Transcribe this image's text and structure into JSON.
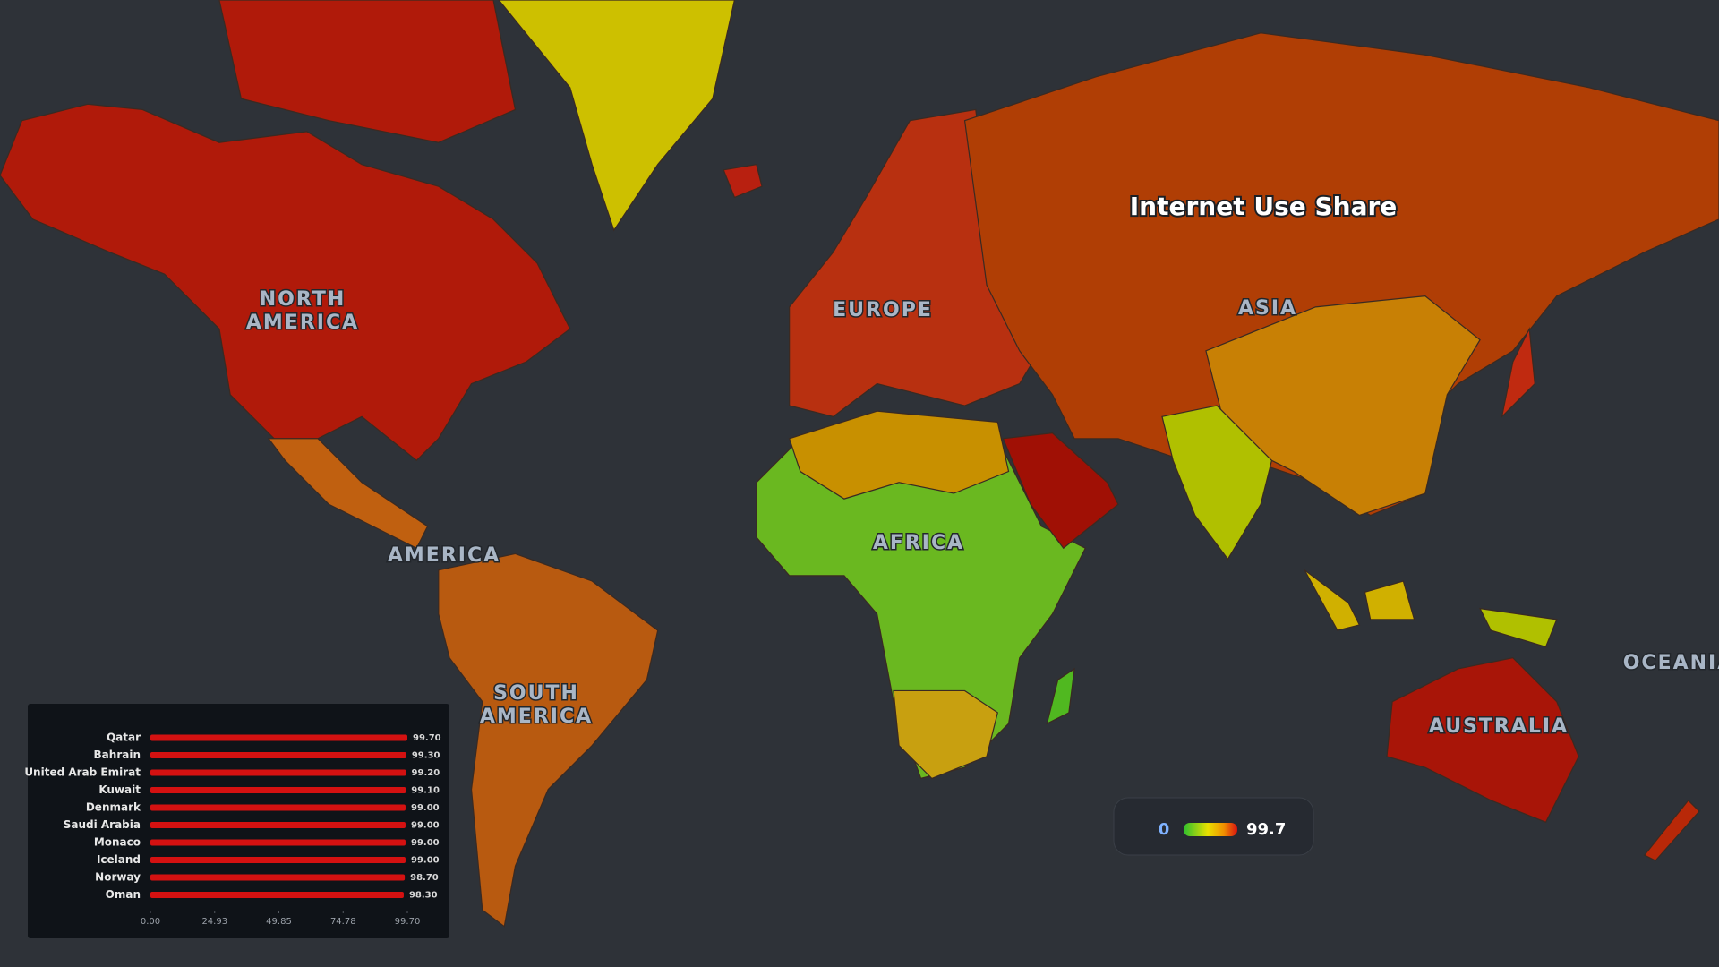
{
  "title": "Internet Use Share",
  "map_labels": [
    [
      "NORTH",
      "AMERICA"
    ],
    [
      "EUROPE"
    ],
    [
      "ASIA"
    ],
    [
      "AMERICA"
    ],
    [
      "AFRICA"
    ],
    [
      "SOUTH",
      "AMERICA"
    ],
    [
      "AUSTRALIA"
    ],
    [
      "OCEANIA"
    ]
  ],
  "legend": {
    "min": 0,
    "max": 99.7
  },
  "chart_data": {
    "type": "bar",
    "orientation": "horizontal",
    "categories": [
      "Qatar",
      "Bahrain",
      "United Arab Emirat",
      "Kuwait",
      "Denmark",
      "Saudi Arabia",
      "Monaco",
      "Iceland",
      "Norway",
      "Oman"
    ],
    "values": [
      99.7,
      99.3,
      99.2,
      99.1,
      99.0,
      99.0,
      99.0,
      99.0,
      98.7,
      98.3
    ],
    "value_labels": [
      "99.70",
      "99.30",
      "99.20",
      "99.10",
      "99.00",
      "99.00",
      "99.00",
      "99.00",
      "98.70",
      "98.30"
    ],
    "color": "#d41111",
    "xlim": [
      0,
      99.7
    ],
    "xticks": [
      {
        "value": 0,
        "label": "0.00"
      },
      24.93,
      49.85,
      74.78,
      {
        "value": 99.7,
        "label": "99.70"
      }
    ]
  }
}
